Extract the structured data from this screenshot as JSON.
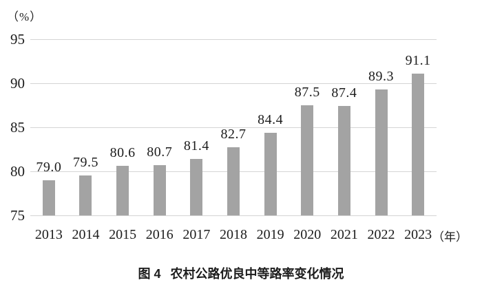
{
  "chart_data": {
    "type": "bar",
    "title": "图4 农村公路优良中等路率变化情况",
    "y_unit_label": "（%）",
    "x_unit_label": "（年）",
    "categories": [
      "2013",
      "2014",
      "2015",
      "2016",
      "2017",
      "2018",
      "2019",
      "2020",
      "2021",
      "2022",
      "2023"
    ],
    "values": [
      79.0,
      79.5,
      80.6,
      80.7,
      81.4,
      82.7,
      84.4,
      87.5,
      87.4,
      89.3,
      91.1
    ],
    "value_labels": [
      "79.0",
      "79.5",
      "80.6",
      "80.7",
      "81.4",
      "82.7",
      "84.4",
      "87.5",
      "87.4",
      "89.3",
      "91.1"
    ],
    "ylim": [
      75,
      95
    ],
    "yticks": [
      75,
      80,
      85,
      90,
      95
    ],
    "grid": true,
    "legend": "none",
    "bar_color": "#a3a3a3",
    "grid_color": "#d4d4d4",
    "text_color": "#1c1c1c",
    "background": "#ffffff"
  },
  "caption": {
    "figure_label": "图 4",
    "text": "农村公路优良中等路率变化情况"
  }
}
